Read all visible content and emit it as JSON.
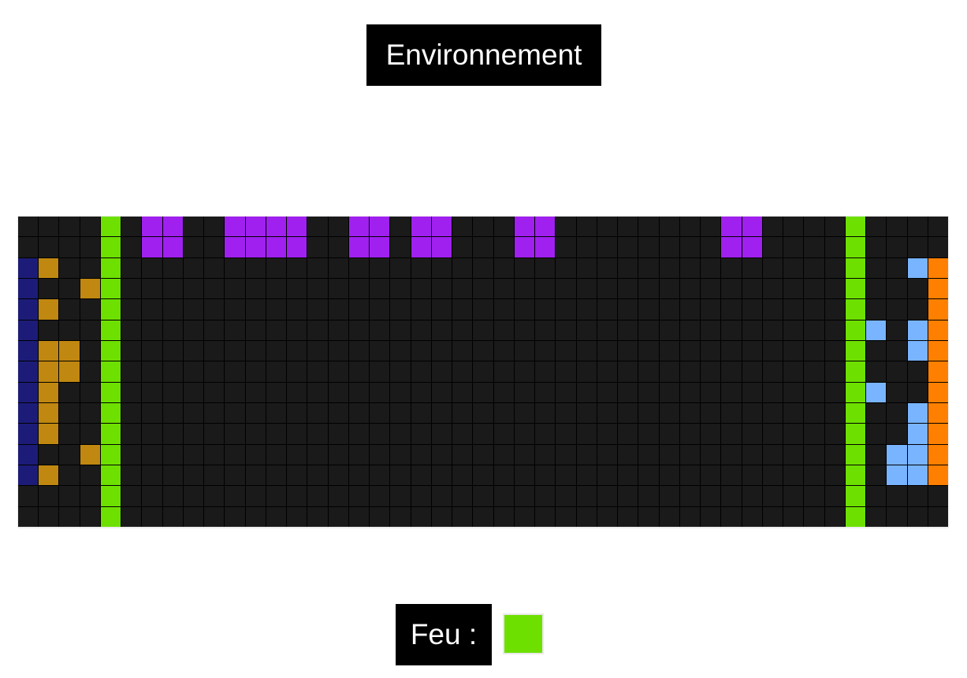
{
  "title": "Environnement",
  "legend": {
    "label": "Feu :",
    "swatch_color": "#6ee000"
  },
  "grid": {
    "cols": 45,
    "rows": 15,
    "empty_color": "#1a1a1a",
    "palette": {
      "green": "#6ee000",
      "purple": "#a020f0",
      "navy": "#1c1c78",
      "gold": "#c08810",
      "lightblue": "#78b4ff",
      "orange": "#ff8000"
    },
    "regions": [
      {
        "color": "green",
        "cols": [
          4
        ],
        "rows": [
          0,
          1,
          2,
          3,
          4,
          5,
          6,
          7,
          8,
          9,
          10,
          11,
          12,
          13,
          14
        ]
      },
      {
        "color": "green",
        "cols": [
          40
        ],
        "rows": [
          0,
          1,
          2,
          3,
          4,
          5,
          6,
          7,
          8,
          9,
          10,
          11,
          12,
          13,
          14
        ]
      },
      {
        "color": "purple",
        "cols": [
          6,
          7
        ],
        "rows": [
          0,
          1
        ]
      },
      {
        "color": "purple",
        "cols": [
          10,
          11,
          12,
          13
        ],
        "rows": [
          0,
          1
        ]
      },
      {
        "color": "purple",
        "cols": [
          16,
          17
        ],
        "rows": [
          0,
          1
        ]
      },
      {
        "color": "purple",
        "cols": [
          19,
          20
        ],
        "rows": [
          0,
          1
        ]
      },
      {
        "color": "purple",
        "cols": [
          24,
          25
        ],
        "rows": [
          0,
          1
        ]
      },
      {
        "color": "purple",
        "cols": [
          34,
          35
        ],
        "rows": [
          0,
          1
        ]
      },
      {
        "color": "navy",
        "cols": [
          0
        ],
        "rows": [
          2,
          3,
          4,
          5,
          6,
          7,
          8,
          9,
          10,
          11,
          12
        ]
      },
      {
        "color": "orange",
        "cols": [
          44
        ],
        "rows": [
          2,
          3,
          4,
          5,
          6,
          7,
          8,
          9,
          10,
          11,
          12
        ]
      }
    ],
    "cells": [
      {
        "color": "gold",
        "c": 1,
        "r": 2
      },
      {
        "color": "gold",
        "c": 3,
        "r": 3
      },
      {
        "color": "gold",
        "c": 1,
        "r": 4
      },
      {
        "color": "gold",
        "c": 1,
        "r": 6
      },
      {
        "color": "gold",
        "c": 2,
        "r": 6
      },
      {
        "color": "gold",
        "c": 1,
        "r": 7
      },
      {
        "color": "gold",
        "c": 2,
        "r": 7
      },
      {
        "color": "gold",
        "c": 1,
        "r": 8
      },
      {
        "color": "gold",
        "c": 1,
        "r": 9
      },
      {
        "color": "gold",
        "c": 1,
        "r": 10
      },
      {
        "color": "gold",
        "c": 3,
        "r": 11
      },
      {
        "color": "gold",
        "c": 1,
        "r": 12
      },
      {
        "color": "lightblue",
        "c": 43,
        "r": 2
      },
      {
        "color": "lightblue",
        "c": 41,
        "r": 5
      },
      {
        "color": "lightblue",
        "c": 43,
        "r": 5
      },
      {
        "color": "lightblue",
        "c": 43,
        "r": 6
      },
      {
        "color": "lightblue",
        "c": 41,
        "r": 8
      },
      {
        "color": "lightblue",
        "c": 43,
        "r": 9
      },
      {
        "color": "lightblue",
        "c": 43,
        "r": 10
      },
      {
        "color": "lightblue",
        "c": 42,
        "r": 11
      },
      {
        "color": "lightblue",
        "c": 43,
        "r": 11
      },
      {
        "color": "lightblue",
        "c": 42,
        "r": 12
      },
      {
        "color": "lightblue",
        "c": 43,
        "r": 12
      }
    ]
  }
}
